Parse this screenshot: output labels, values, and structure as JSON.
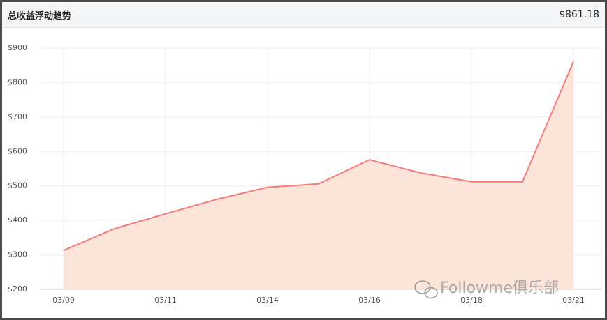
{
  "header": {
    "title": "总收益浮动趋势",
    "value": "$861.18"
  },
  "chart_data": {
    "type": "area",
    "categories": [
      "03/09",
      null,
      "03/11",
      null,
      "03/14",
      null,
      "03/16",
      null,
      "03/18",
      null,
      "03/21"
    ],
    "series": [
      {
        "color": "#f47c7c",
        "fill": "#fde4d9",
        "values": [
          313,
          376,
          419,
          461,
          496,
          506,
          576,
          538,
          512,
          512,
          861.18
        ]
      }
    ],
    "ylim": [
      200,
      900
    ],
    "yticks": [
      {
        "value": 200,
        "label": "$200"
      },
      {
        "value": 300,
        "label": "$300"
      },
      {
        "value": 400,
        "label": "$400"
      },
      {
        "value": 500,
        "label": "$500"
      },
      {
        "value": 600,
        "label": "$600"
      },
      {
        "value": 700,
        "label": "$700"
      },
      {
        "value": 800,
        "label": "$800"
      },
      {
        "value": 900,
        "label": "$900"
      }
    ],
    "grid": true
  },
  "watermark": "Followme俱乐部"
}
